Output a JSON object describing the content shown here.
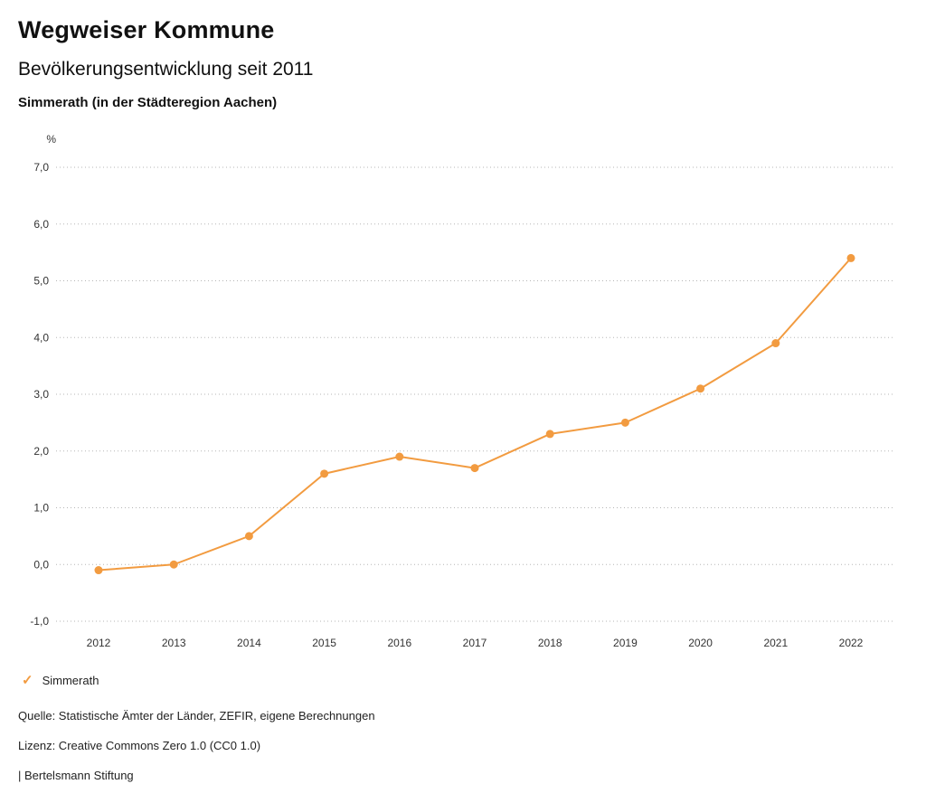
{
  "header": {
    "title": "Wegweiser Kommune",
    "subtitle": "Bevölkerungsentwicklung seit 2011",
    "region": "Simmerath (in der Städteregion Aachen)"
  },
  "chart_data": {
    "type": "line",
    "title": "Bevölkerungsentwicklung seit 2011",
    "subtitle": "Simmerath (in der Städteregion Aachen)",
    "unit": "%",
    "xlabel": "",
    "ylabel": "%",
    "categories": [
      "2012",
      "2013",
      "2014",
      "2015",
      "2016",
      "2017",
      "2018",
      "2019",
      "2020",
      "2021",
      "2022"
    ],
    "series": [
      {
        "name": "Simmerath",
        "color": "#F29B40",
        "values": [
          -0.1,
          0.0,
          0.5,
          1.6,
          1.9,
          1.7,
          2.3,
          2.5,
          3.1,
          3.9,
          5.4
        ]
      }
    ],
    "ylim": [
      -1.0,
      7.0
    ],
    "ytick_step": 1.0,
    "ytick_labels": [
      "-1,0",
      "0,0",
      "1,0",
      "2,0",
      "3,0",
      "4,0",
      "5,0",
      "6,0",
      "7,0"
    ],
    "grid": "horizontal-dotted",
    "legend_position": "bottom-left"
  },
  "legend": {
    "items": [
      {
        "label": "Simmerath",
        "color": "#F29B40",
        "marker": "check"
      }
    ]
  },
  "footer": {
    "source": "Quelle: Statistische Ämter der Länder, ZEFIR, eigene Berechnungen",
    "license": "Lizenz: Creative Commons Zero 1.0 (CC0 1.0)",
    "attribution": "| Bertelsmann Stiftung"
  },
  "colors": {
    "accent": "#F29B40",
    "gridline": "#b5b5b5",
    "text": "#1a1a1a",
    "tick_text": "#333333"
  }
}
